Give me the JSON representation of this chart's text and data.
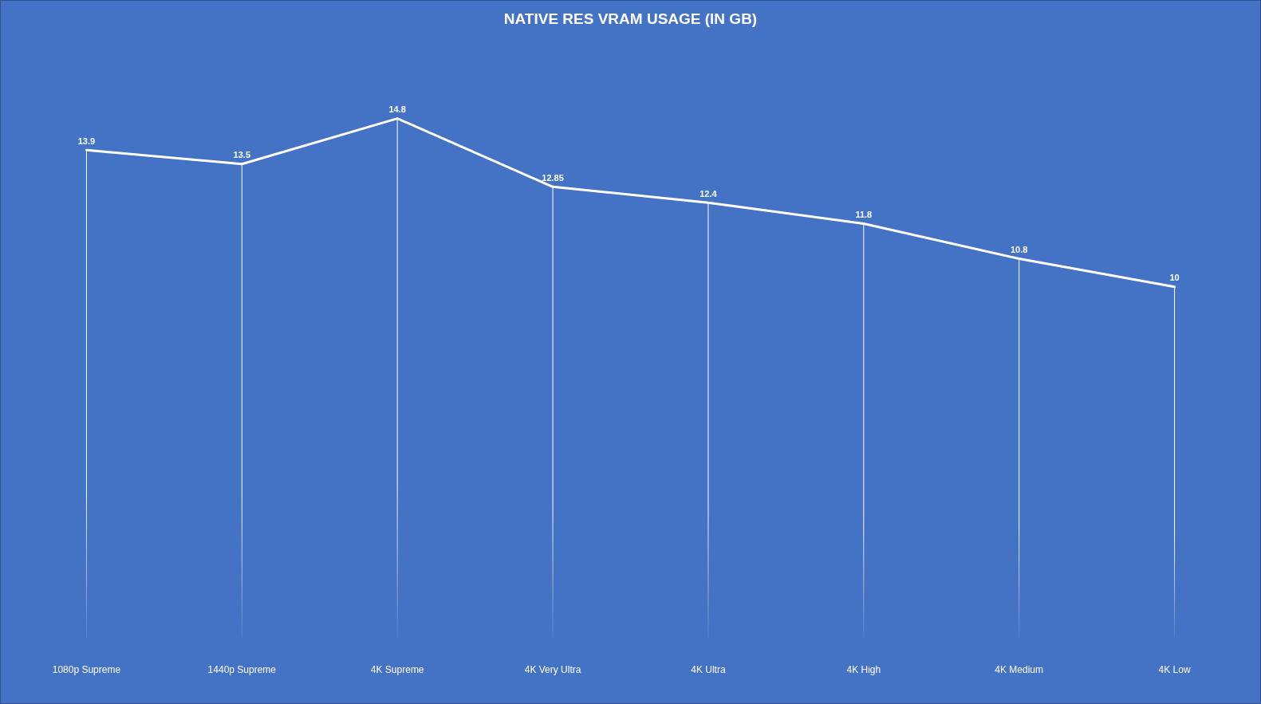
{
  "chart_data": {
    "type": "line",
    "title": "NATIVE RES VRAM USAGE (IN GB)",
    "categories": [
      "1080p Supreme",
      "1440p Supreme",
      "4K Supreme",
      "4K Very Ultra",
      "4K Ultra",
      "4K High",
      "4K Medium",
      "4K Low"
    ],
    "series": [
      {
        "color": "#ffffff",
        "values": [
          13.9,
          13.5,
          14.8,
          12.85,
          12.4,
          11.8,
          10.8,
          10
        ]
      }
    ],
    "data_labels": true,
    "grid": "x",
    "line_style": "solid"
  }
}
